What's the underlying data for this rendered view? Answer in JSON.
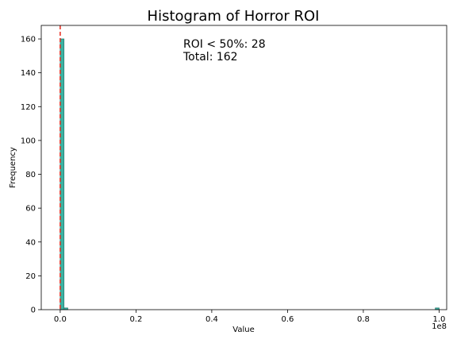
{
  "chart_data": {
    "type": "histogram",
    "title": "Histogram of Horror ROI",
    "xlabel": "Value",
    "ylabel": "Frequency",
    "x_offset_label": "1e8",
    "x_scale_factor": 100000000,
    "xlim": [
      -0.05,
      1.02
    ],
    "ylim": [
      0,
      168
    ],
    "x_ticks": [
      0.0,
      0.2,
      0.4,
      0.6,
      0.8,
      1.0
    ],
    "x_tick_labels": [
      "0.0",
      "0.2",
      "0.4",
      "0.6",
      "0.8",
      "1.0"
    ],
    "y_ticks": [
      0,
      20,
      40,
      60,
      80,
      100,
      120,
      140,
      160
    ],
    "y_tick_labels": [
      "0",
      "20",
      "40",
      "60",
      "80",
      "100",
      "120",
      "140",
      "160"
    ],
    "bins": [
      {
        "x0": 0.0,
        "x1": 0.01,
        "count": 160
      },
      {
        "x0": 0.01,
        "x1": 0.02,
        "count": 1
      },
      {
        "x0": 0.99,
        "x1": 1.0,
        "count": 1
      }
    ],
    "bar_color": "#3cb3a3",
    "bar_edge_color": "#2a7d72",
    "reference_line": {
      "x": 0.0,
      "color": "#e8291c",
      "style": "dashed"
    },
    "annotation_lines": [
      "ROI < 50%: 28",
      "Total: 162"
    ],
    "grid": false
  }
}
